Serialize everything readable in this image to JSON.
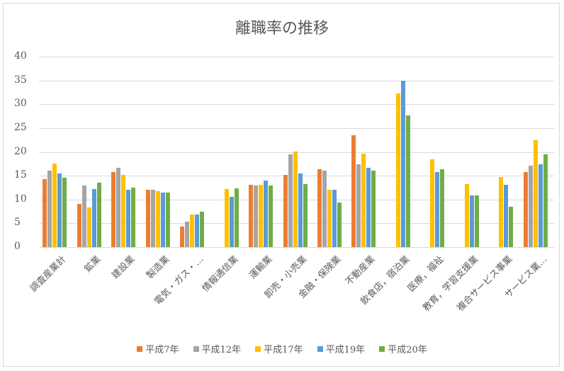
{
  "chart_data": {
    "type": "bar",
    "title": "離職率の推移",
    "xlabel": "",
    "ylabel": "",
    "ylim": [
      0,
      40
    ],
    "yticks": [
      0,
      5,
      10,
      15,
      20,
      25,
      30,
      35,
      40
    ],
    "grid": true,
    "legend_position": "bottom",
    "categories": [
      "調査産業計",
      "鉱業",
      "建設業",
      "製造業",
      "電気・ガス・…",
      "情報通信業",
      "運輸業",
      "卸売・小売業",
      "金融・保険業",
      "不動産業",
      "飲食店，宿泊業",
      "医療，福祉",
      "教育，学習支援業",
      "複合サービス事業",
      "サービス業…"
    ],
    "series": [
      {
        "name": "平成7年",
        "color": "#ed7d31",
        "values": [
          14.3,
          9.0,
          15.8,
          12.0,
          4.3,
          null,
          13.1,
          15.2,
          16.4,
          23.5,
          null,
          null,
          null,
          null,
          15.8
        ]
      },
      {
        "name": "平成12年",
        "color": "#a5a5a5",
        "values": [
          16.1,
          12.9,
          16.7,
          12.1,
          5.3,
          null,
          12.9,
          19.5,
          16.1,
          17.4,
          null,
          null,
          null,
          null,
          17.1
        ]
      },
      {
        "name": "平成17年",
        "color": "#ffc000",
        "values": [
          17.6,
          8.4,
          15.2,
          11.7,
          6.8,
          12.2,
          13.1,
          20.1,
          12.0,
          19.7,
          32.3,
          18.5,
          13.2,
          14.7,
          22.4
        ]
      },
      {
        "name": "平成19年",
        "color": "#5b9bd5",
        "values": [
          15.5,
          12.2,
          12.0,
          11.4,
          6.8,
          10.5,
          14.0,
          15.5,
          12.0,
          16.7,
          35.0,
          15.8,
          10.8,
          13.1,
          17.4
        ]
      },
      {
        "name": "平成20年",
        "color": "#70ad47",
        "values": [
          14.6,
          13.5,
          12.5,
          11.4,
          7.5,
          12.4,
          12.9,
          13.3,
          9.3,
          16.1,
          27.6,
          16.4,
          10.8,
          8.5,
          19.5
        ]
      }
    ]
  }
}
